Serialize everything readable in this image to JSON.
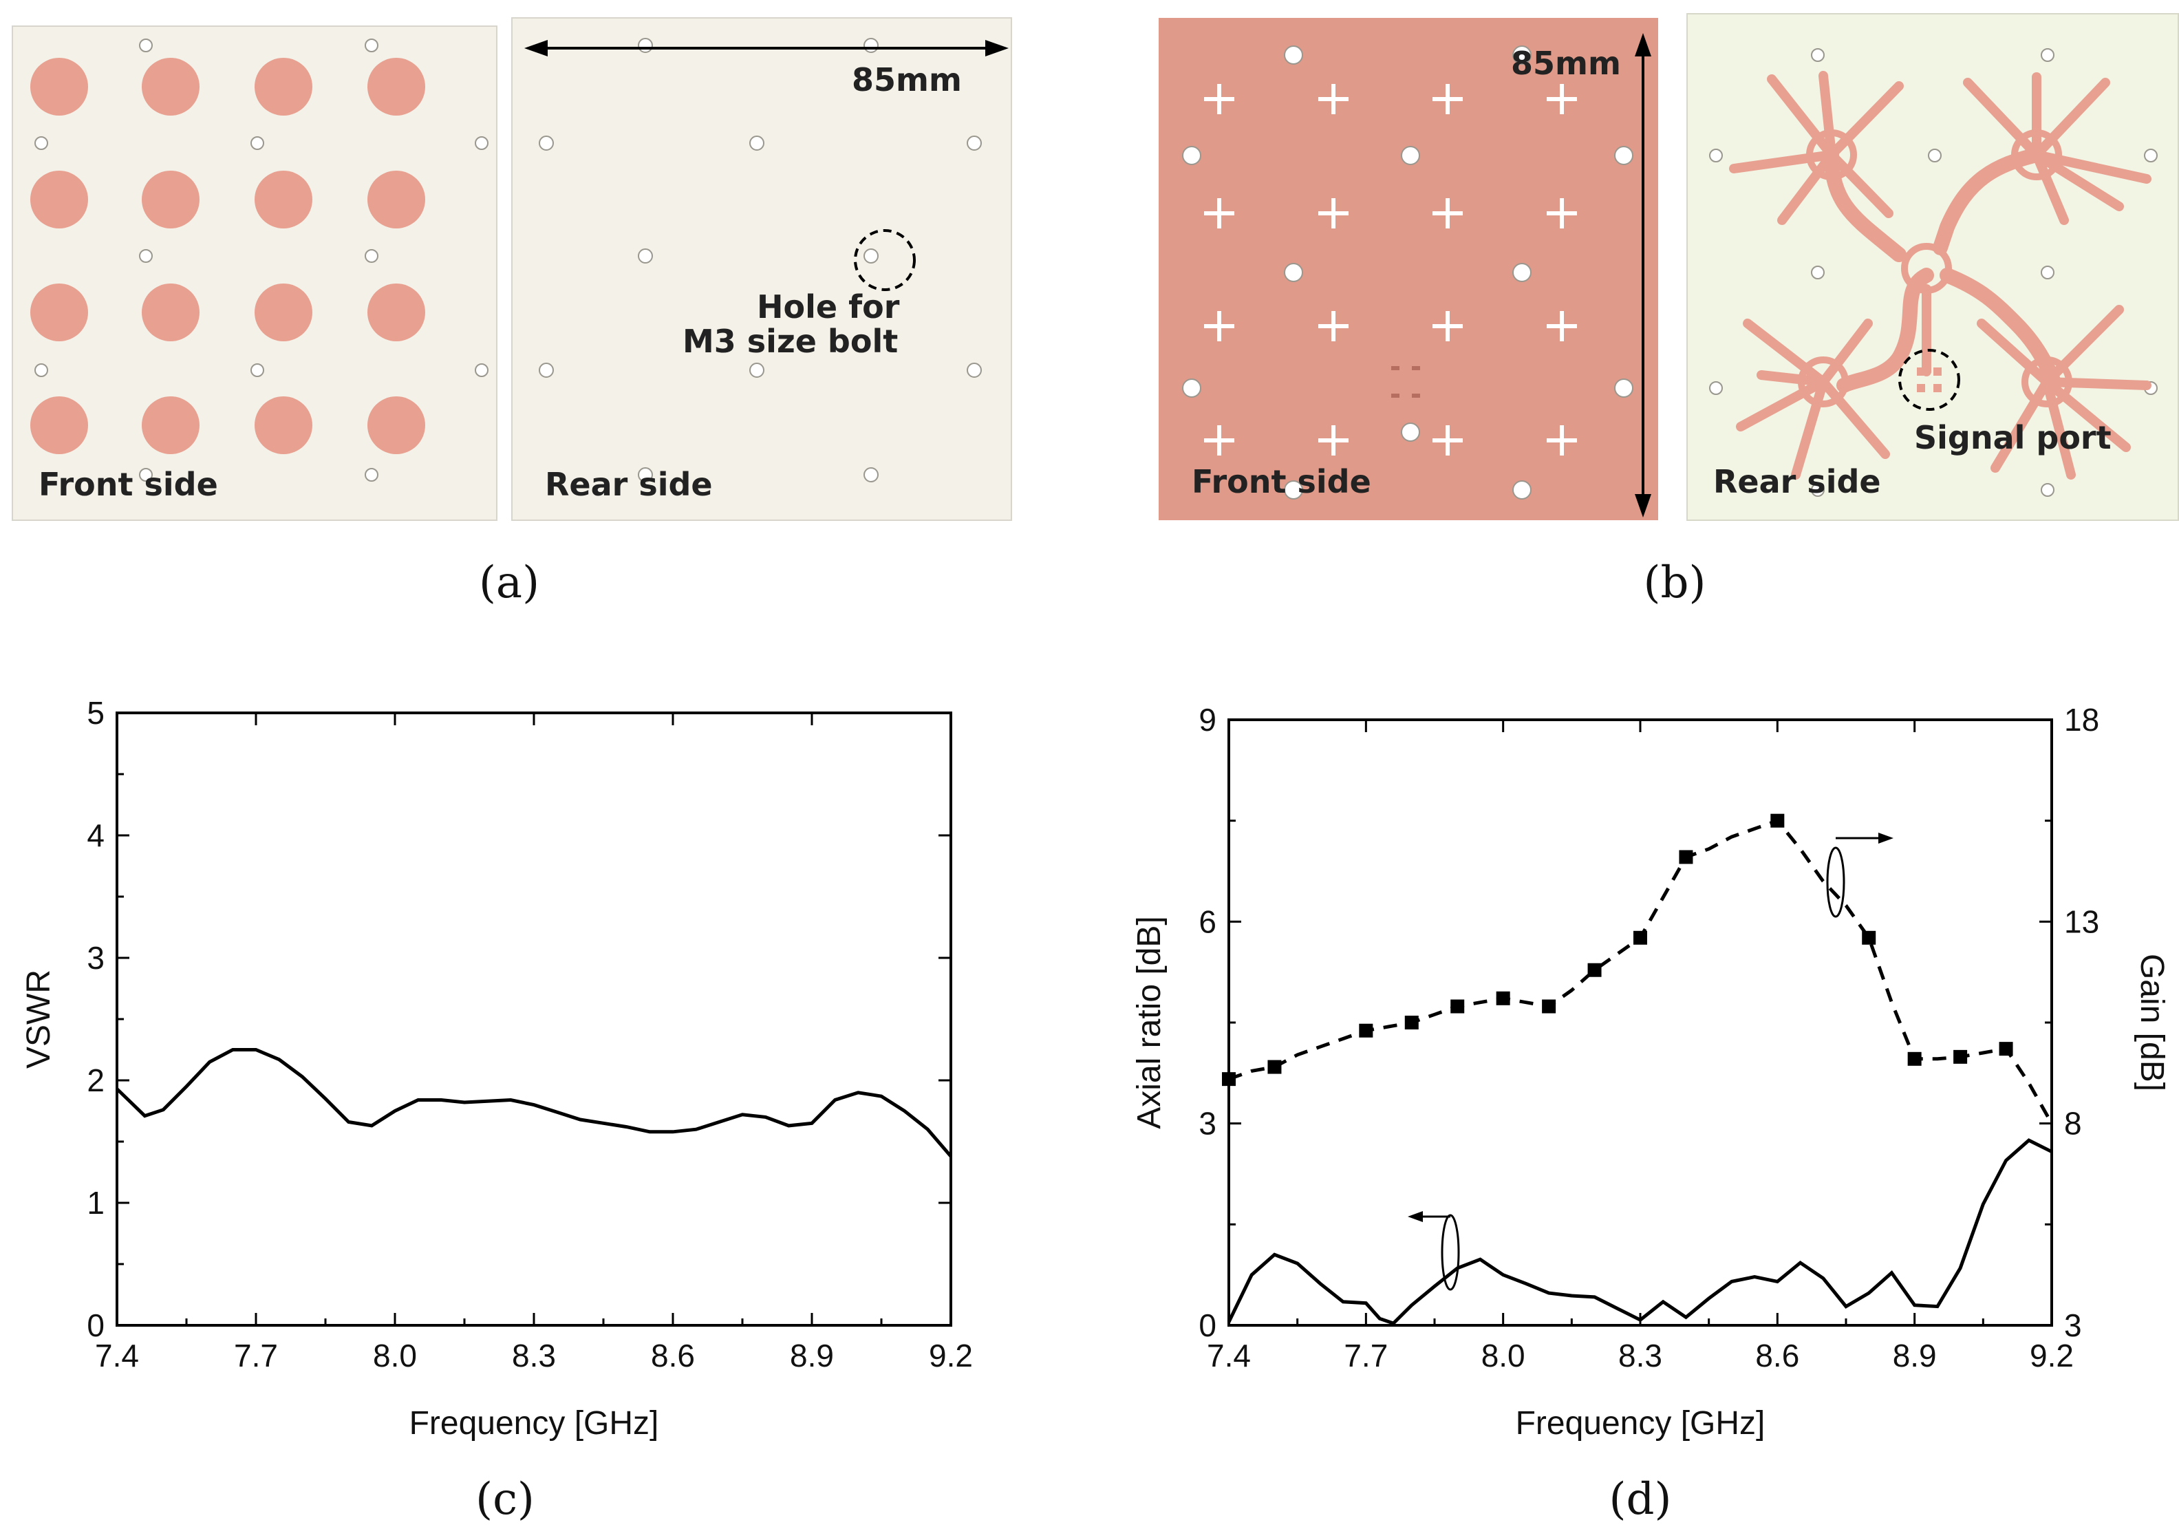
{
  "figure": {
    "panel_a": {
      "caption": "(a)",
      "front_label": "Front side",
      "rear_label": "Rear side",
      "dimension": "85mm",
      "hole_note_line1": "Hole for",
      "hole_note_line2": "M3 size bolt"
    },
    "panel_b": {
      "caption": "(b)",
      "front_label": "Front side",
      "rear_label": "Rear side",
      "dimension": "85mm",
      "port_label": "Signal port"
    },
    "panel_c": {
      "caption": "(c)"
    },
    "panel_d": {
      "caption": "(d)"
    }
  },
  "colors": {
    "copper": "#e8a090",
    "substrate": "#f4f1e8",
    "substrate_b": "#f2f4e4",
    "line": "#000000"
  },
  "chart_data": [
    {
      "id": "c",
      "type": "line",
      "title": "",
      "xlabel": "Frequency [GHz]",
      "ylabel": "VSWR",
      "xlim": [
        7.4,
        9.2
      ],
      "ylim": [
        0,
        5
      ],
      "xticks": [
        "7.4",
        "7.7",
        "8.0",
        "8.3",
        "8.6",
        "8.9",
        "9.2"
      ],
      "yticks": [
        "0",
        "1",
        "2",
        "3",
        "4",
        "5"
      ],
      "series": [
        {
          "name": "VSWR",
          "style": "solid",
          "x": [
            7.4,
            7.43,
            7.46,
            7.5,
            7.55,
            7.6,
            7.65,
            7.7,
            7.75,
            7.8,
            7.85,
            7.9,
            7.95,
            8.0,
            8.05,
            8.1,
            8.15,
            8.2,
            8.25,
            8.3,
            8.35,
            8.4,
            8.45,
            8.5,
            8.55,
            8.6,
            8.65,
            8.7,
            8.75,
            8.8,
            8.85,
            8.9,
            8.95,
            9.0,
            9.05,
            9.1,
            9.15,
            9.2
          ],
          "y": [
            1.93,
            1.82,
            1.71,
            1.76,
            1.95,
            2.15,
            2.25,
            2.25,
            2.17,
            2.03,
            1.85,
            1.66,
            1.63,
            1.75,
            1.84,
            1.84,
            1.82,
            1.83,
            1.84,
            1.8,
            1.74,
            1.68,
            1.65,
            1.62,
            1.58,
            1.58,
            1.6,
            1.66,
            1.72,
            1.7,
            1.63,
            1.65,
            1.84,
            1.9,
            1.87,
            1.75,
            1.6,
            1.38
          ]
        }
      ]
    },
    {
      "id": "d",
      "type": "line",
      "title": "",
      "xlabel": "Frequency [GHz]",
      "ylabel": "Axial ratio [dB]",
      "ylabel_right": "Gain [dB]",
      "xlim": [
        7.4,
        9.2
      ],
      "ylim": [
        0,
        9
      ],
      "ylim_right": [
        3,
        18
      ],
      "xticks": [
        "7.4",
        "7.7",
        "8.0",
        "8.3",
        "8.6",
        "8.9",
        "9.2"
      ],
      "yticks": [
        "0",
        "3",
        "6",
        "9"
      ],
      "yticks_right": [
        "3",
        "8",
        "13",
        "18"
      ],
      "series": [
        {
          "name": "Axial ratio",
          "axis": "left",
          "style": "solid",
          "x": [
            7.4,
            7.45,
            7.5,
            7.55,
            7.6,
            7.65,
            7.7,
            7.73,
            7.76,
            7.8,
            7.85,
            7.9,
            7.95,
            8.0,
            8.05,
            8.1,
            8.15,
            8.2,
            8.25,
            8.3,
            8.35,
            8.4,
            8.45,
            8.5,
            8.55,
            8.6,
            8.65,
            8.7,
            8.75,
            8.8,
            8.85,
            8.9,
            8.95,
            9.0,
            9.05,
            9.1,
            9.15,
            9.2
          ],
          "y": [
            0.05,
            0.75,
            1.05,
            0.92,
            0.62,
            0.35,
            0.33,
            0.1,
            0.03,
            0.3,
            0.58,
            0.85,
            0.98,
            0.75,
            0.62,
            0.48,
            0.44,
            0.42,
            0.25,
            0.08,
            0.35,
            0.12,
            0.4,
            0.65,
            0.72,
            0.65,
            0.93,
            0.7,
            0.28,
            0.48,
            0.78,
            0.3,
            0.28,
            0.85,
            1.8,
            2.45,
            2.75,
            2.58
          ]
        },
        {
          "name": "Gain",
          "axis": "right",
          "style": "dashed",
          "marker": "square",
          "x": [
            7.4,
            7.45,
            7.5,
            7.55,
            7.6,
            7.65,
            7.7,
            7.75,
            7.8,
            7.85,
            7.9,
            7.95,
            8.0,
            8.05,
            8.1,
            8.15,
            8.2,
            8.25,
            8.3,
            8.35,
            8.4,
            8.45,
            8.5,
            8.55,
            8.6,
            8.65,
            8.7,
            8.75,
            8.8,
            8.85,
            8.9,
            8.95,
            9.0,
            9.05,
            9.1,
            9.15,
            9.2
          ],
          "y": [
            9.1,
            9.3,
            9.4,
            9.7,
            9.9,
            10.1,
            10.3,
            10.4,
            10.5,
            10.7,
            10.9,
            11.0,
            11.1,
            11.0,
            10.9,
            11.3,
            11.8,
            12.2,
            12.6,
            13.6,
            14.6,
            14.8,
            15.1,
            15.3,
            15.5,
            14.8,
            14.0,
            13.4,
            12.6,
            11.0,
            9.6,
            9.6,
            9.65,
            9.75,
            9.85,
            9.0,
            8.0
          ],
          "markers_x": [
            7.4,
            7.5,
            7.7,
            7.8,
            7.9,
            8.0,
            8.1,
            8.2,
            8.3,
            8.4,
            8.6,
            8.8,
            8.9,
            9.0,
            9.1
          ],
          "markers_y": [
            9.1,
            9.4,
            10.3,
            10.5,
            10.9,
            11.1,
            10.9,
            11.8,
            12.6,
            14.6,
            15.5,
            12.6,
            9.6,
            9.65,
            9.85
          ]
        }
      ]
    }
  ]
}
